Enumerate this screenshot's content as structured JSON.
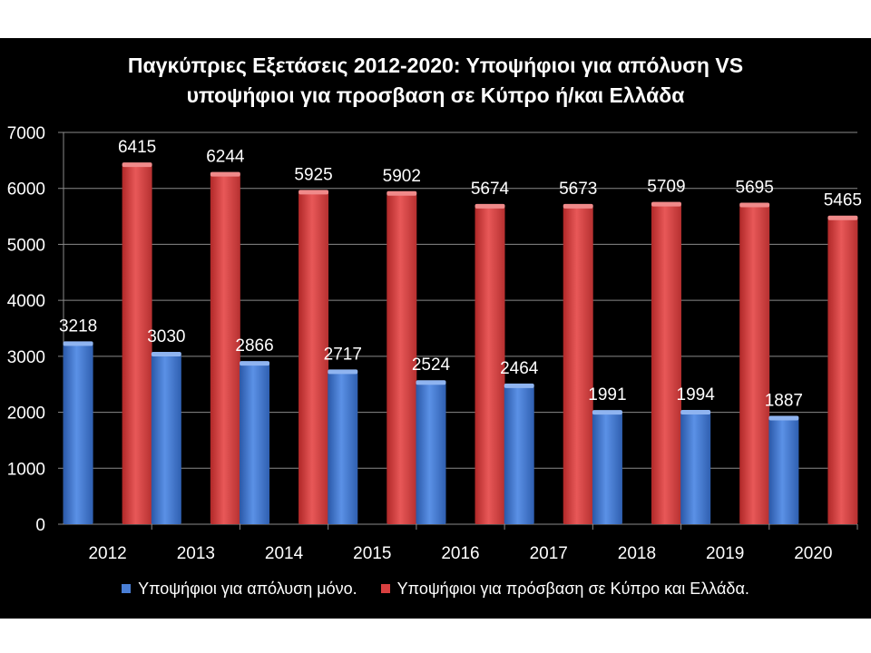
{
  "colors": {
    "background": "#000000",
    "series_1": "#4a7fd6",
    "series_2": "#d94040",
    "grid": "#8a8a8a",
    "text": "#ffffff"
  },
  "chart_data": {
    "type": "bar",
    "title_lines": [
      "Παγκύπριες Εξετάσεις 2012-2020: Υποψήφιοι για απόλυση VS",
      "υποψήφιοι για προσβαση σε Κύπρο ή/και Ελλάδα"
    ],
    "categories": [
      "2012",
      "2013",
      "2014",
      "2015",
      "2016",
      "2017",
      "2018",
      "2019",
      "2020"
    ],
    "series": [
      {
        "name": "Υποψήφιοι για απόλυση μόνο.",
        "values": [
          3218,
          3030,
          2866,
          2717,
          2524,
          2464,
          1991,
          1994,
          1887
        ]
      },
      {
        "name": "Υποψήφιοι για πρόσβαση σε Κύπρο και Ελλάδα.",
        "values": [
          6415,
          6244,
          5925,
          5902,
          5674,
          5673,
          5709,
          5695,
          5465
        ]
      }
    ],
    "ylim": [
      0,
      7000
    ],
    "yticks": [
      "0",
      "1000",
      "2000",
      "3000",
      "4000",
      "5000",
      "6000",
      "7000"
    ],
    "grid": true,
    "legend_position": "bottom"
  }
}
